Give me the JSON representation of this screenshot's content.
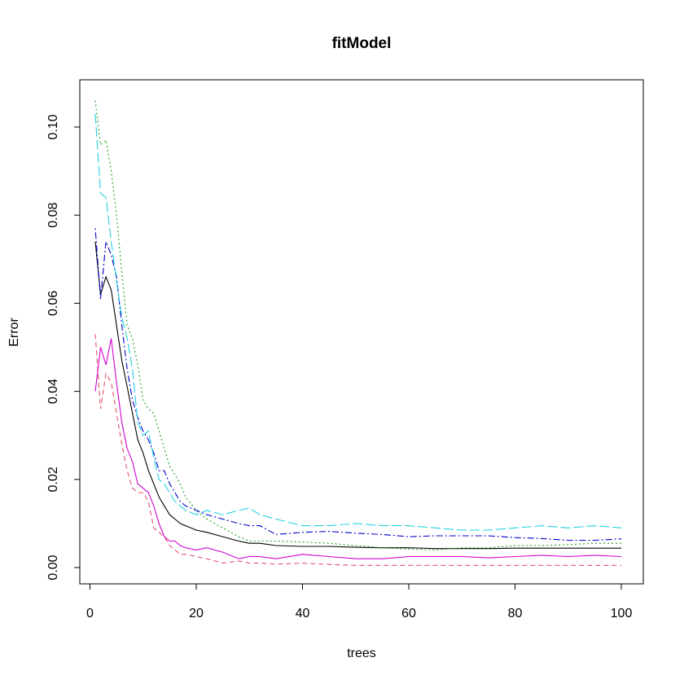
{
  "chart_data": {
    "type": "line",
    "title": "fitModel",
    "xlabel": "trees",
    "ylabel": "Error",
    "xlim": [
      1,
      100
    ],
    "ylim": [
      0,
      0.1
    ],
    "grid": false,
    "legend": "none",
    "x_ticks": [
      "0",
      "20",
      "40",
      "60",
      "80",
      "100"
    ],
    "y_ticks": [
      "0.00",
      "0.02",
      "0.04",
      "0.06",
      "0.08",
      "0.10"
    ],
    "series": [
      {
        "color": "#000000",
        "dash": "solid",
        "x": [
          1,
          2,
          3,
          4,
          5,
          6,
          7,
          8,
          9,
          10,
          11,
          12,
          13,
          14,
          15,
          16,
          17,
          18,
          20,
          22,
          25,
          28,
          30,
          32,
          35,
          40,
          45,
          50,
          55,
          60,
          65,
          70,
          75,
          80,
          85,
          90,
          95,
          100
        ],
        "y": [
          0.074,
          0.062,
          0.066,
          0.063,
          0.055,
          0.047,
          0.041,
          0.035,
          0.029,
          0.026,
          0.022,
          0.019,
          0.016,
          0.014,
          0.012,
          0.011,
          0.01,
          0.0095,
          0.0085,
          0.008,
          0.007,
          0.006,
          0.0055,
          0.0055,
          0.005,
          0.0048,
          0.0048,
          0.0046,
          0.0045,
          0.0045,
          0.0043,
          0.0043,
          0.0043,
          0.0044,
          0.0044,
          0.0044,
          0.0044,
          0.0044
        ]
      },
      {
        "color": "#df536b",
        "dash": "dashed",
        "x": [
          1,
          2,
          3,
          4,
          5,
          6,
          7,
          8,
          9,
          10,
          11,
          12,
          13,
          14,
          15,
          16,
          17,
          18,
          20,
          22,
          25,
          28,
          30,
          32,
          35,
          40,
          45,
          50,
          55,
          60,
          65,
          70,
          75,
          80,
          85,
          90,
          95,
          100
        ],
        "y": [
          0.053,
          0.036,
          0.044,
          0.042,
          0.035,
          0.028,
          0.022,
          0.018,
          0.017,
          0.017,
          0.015,
          0.009,
          0.008,
          0.007,
          0.005,
          0.004,
          0.003,
          0.003,
          0.0025,
          0.002,
          0.001,
          0.0015,
          0.001,
          0.001,
          0.0008,
          0.001,
          0.0007,
          0.0005,
          0.0005,
          0.0005,
          0.0005,
          0.0005,
          0.0005,
          0.0005,
          0.0005,
          0.0005,
          0.0005,
          0.0005
        ]
      },
      {
        "color": "#22a022",
        "dash": "dotted",
        "x": [
          1,
          2,
          3,
          4,
          5,
          6,
          7,
          8,
          9,
          10,
          11,
          12,
          13,
          14,
          15,
          16,
          17,
          18,
          20,
          22,
          25,
          28,
          30,
          32,
          35,
          40,
          45,
          50,
          55,
          60,
          65,
          70,
          75,
          80,
          85,
          90,
          95,
          100
        ],
        "y": [
          0.106,
          0.096,
          0.097,
          0.09,
          0.08,
          0.067,
          0.055,
          0.052,
          0.046,
          0.038,
          0.036,
          0.035,
          0.031,
          0.027,
          0.023,
          0.021,
          0.019,
          0.016,
          0.013,
          0.011,
          0.009,
          0.007,
          0.006,
          0.006,
          0.006,
          0.0058,
          0.0055,
          0.005,
          0.0045,
          0.0042,
          0.004,
          0.0045,
          0.0045,
          0.005,
          0.005,
          0.0052,
          0.0055,
          0.0055
        ]
      },
      {
        "color": "#0000cc",
        "dash": "dotdash",
        "x": [
          1,
          2,
          3,
          4,
          5,
          6,
          7,
          8,
          9,
          10,
          11,
          12,
          13,
          14,
          15,
          16,
          17,
          18,
          20,
          22,
          25,
          28,
          30,
          32,
          35,
          40,
          45,
          50,
          55,
          60,
          65,
          70,
          75,
          80,
          85,
          90,
          95,
          100
        ],
        "y": [
          0.077,
          0.061,
          0.074,
          0.071,
          0.066,
          0.055,
          0.045,
          0.038,
          0.034,
          0.031,
          0.029,
          0.026,
          0.022,
          0.022,
          0.019,
          0.017,
          0.015,
          0.014,
          0.013,
          0.012,
          0.011,
          0.01,
          0.0095,
          0.0095,
          0.0075,
          0.008,
          0.0082,
          0.0078,
          0.0075,
          0.007,
          0.0072,
          0.0072,
          0.0072,
          0.0068,
          0.0066,
          0.0062,
          0.0062,
          0.0065
        ]
      },
      {
        "color": "#22d0e0",
        "dash": "longdash",
        "x": [
          1,
          2,
          3,
          4,
          5,
          6,
          7,
          8,
          9,
          10,
          11,
          12,
          13,
          14,
          15,
          16,
          17,
          18,
          20,
          22,
          25,
          28,
          30,
          32,
          35,
          40,
          45,
          50,
          55,
          60,
          65,
          70,
          75,
          80,
          85,
          90,
          95,
          100
        ],
        "y": [
          0.103,
          0.085,
          0.084,
          0.074,
          0.065,
          0.057,
          0.052,
          0.045,
          0.033,
          0.03,
          0.031,
          0.025,
          0.02,
          0.019,
          0.017,
          0.015,
          0.014,
          0.013,
          0.012,
          0.013,
          0.012,
          0.013,
          0.0135,
          0.012,
          0.011,
          0.0095,
          0.0095,
          0.01,
          0.0095,
          0.0095,
          0.009,
          0.0085,
          0.0085,
          0.009,
          0.0095,
          0.009,
          0.0095,
          0.009
        ]
      },
      {
        "color": "#d000d0",
        "dash": "solid",
        "x": [
          1,
          2,
          3,
          4,
          5,
          6,
          7,
          8,
          9,
          10,
          11,
          12,
          13,
          14,
          15,
          16,
          17,
          18,
          20,
          22,
          25,
          28,
          30,
          32,
          35,
          40,
          45,
          50,
          55,
          60,
          65,
          70,
          75,
          80,
          85,
          90,
          95,
          100
        ],
        "y": [
          0.04,
          0.05,
          0.046,
          0.052,
          0.042,
          0.033,
          0.027,
          0.024,
          0.019,
          0.018,
          0.017,
          0.014,
          0.01,
          0.007,
          0.006,
          0.006,
          0.005,
          0.0045,
          0.004,
          0.0045,
          0.0035,
          0.002,
          0.0025,
          0.0025,
          0.002,
          0.003,
          0.0025,
          0.002,
          0.002,
          0.0025,
          0.0025,
          0.0025,
          0.0022,
          0.0025,
          0.0028,
          0.0025,
          0.0028,
          0.0025
        ]
      }
    ]
  }
}
